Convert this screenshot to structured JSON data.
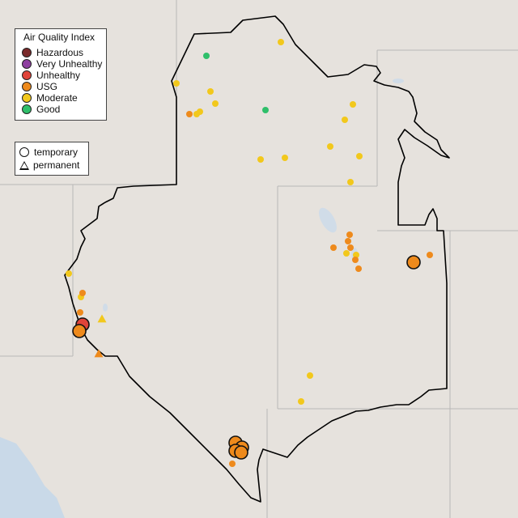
{
  "colors": {
    "Hazardous": "#7a2a2a",
    "Very Unhealthy": "#8e3fa0",
    "Unhealthy": "#e0443a",
    "USG": "#ee8a1c",
    "Moderate": "#f2c81c",
    "Good": "#2fbf6a"
  },
  "legend": {
    "title": "Air Quality Index",
    "categories": [
      "Hazardous",
      "Very Unhealthy",
      "Unhealthy",
      "USG",
      "Moderate",
      "Good"
    ],
    "types": [
      {
        "icon": "circle-icon",
        "label": "temporary"
      },
      {
        "icon": "triangle-icon",
        "label": "permanent"
      }
    ]
  },
  "monitors": [
    {
      "aqi": "Good",
      "type": "temporary"
    },
    {
      "aqi": "Good",
      "type": "temporary"
    },
    {
      "aqi": "Moderate",
      "type": "temporary"
    },
    {
      "aqi": "Moderate",
      "type": "temporary"
    },
    {
      "aqi": "Moderate",
      "type": "temporary"
    },
    {
      "aqi": "Moderate",
      "type": "temporary"
    },
    {
      "aqi": "Moderate",
      "type": "temporary"
    },
    {
      "aqi": "Moderate",
      "type": "temporary"
    },
    {
      "aqi": "Moderate",
      "type": "temporary"
    },
    {
      "aqi": "Moderate",
      "type": "temporary"
    },
    {
      "aqi": "Moderate",
      "type": "temporary"
    },
    {
      "aqi": "Moderate",
      "type": "temporary"
    },
    {
      "aqi": "Moderate",
      "type": "temporary"
    },
    {
      "aqi": "Moderate",
      "type": "temporary"
    },
    {
      "aqi": "Moderate",
      "type": "temporary"
    },
    {
      "aqi": "USG",
      "type": "temporary"
    },
    {
      "aqi": "USG",
      "type": "temporary"
    },
    {
      "aqi": "USG",
      "type": "temporary"
    },
    {
      "aqi": "USG",
      "type": "temporary"
    },
    {
      "aqi": "USG",
      "type": "temporary"
    },
    {
      "aqi": "Moderate",
      "type": "temporary"
    },
    {
      "aqi": "Moderate",
      "type": "temporary"
    },
    {
      "aqi": "USG",
      "type": "temporary"
    },
    {
      "aqi": "USG",
      "type": "temporary"
    },
    {
      "aqi": "USG",
      "type": "temporary"
    },
    {
      "aqi": "Moderate",
      "type": "temporary"
    },
    {
      "aqi": "Moderate",
      "type": "temporary"
    },
    {
      "aqi": "USG",
      "type": "temporary"
    },
    {
      "aqi": "USG",
      "type": "temporary"
    },
    {
      "aqi": "Moderate",
      "type": "permanent"
    },
    {
      "aqi": "USG",
      "type": "temporary"
    },
    {
      "aqi": "Unhealthy",
      "type": "temporary"
    },
    {
      "aqi": "USG",
      "type": "temporary"
    },
    {
      "aqi": "USG",
      "type": "permanent"
    },
    {
      "aqi": "Moderate",
      "type": "temporary"
    },
    {
      "aqi": "Moderate",
      "type": "temporary"
    },
    {
      "aqi": "USG",
      "type": "temporary"
    },
    {
      "aqi": "USG",
      "type": "temporary"
    },
    {
      "aqi": "USG",
      "type": "temporary"
    },
    {
      "aqi": "USG",
      "type": "temporary"
    },
    {
      "aqi": "USG",
      "type": "temporary"
    }
  ]
}
